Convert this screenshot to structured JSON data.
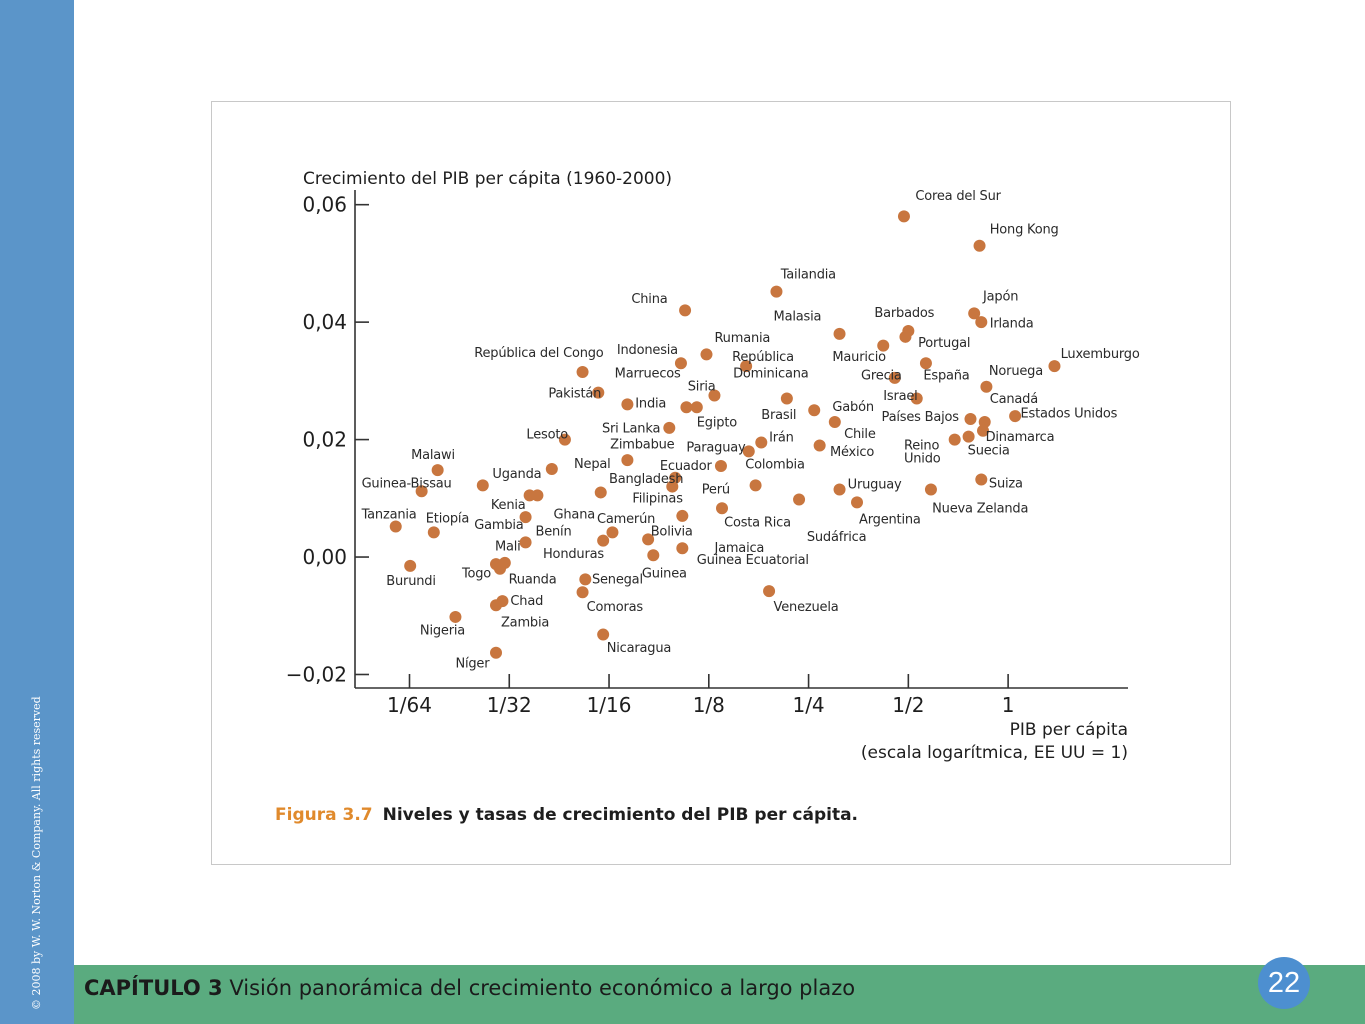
{
  "slide": {
    "copyright": "© 2008 by W. W. Norton & Company. All rights reserved",
    "chapter_label": "CAPÍTULO 3",
    "chapter_title": "Visión panorámica del crecimiento económico a largo plazo",
    "page_number": "22",
    "caption_number": "Figura 3.7",
    "caption_text": "Niveles y tasas de crecimiento del PIB per cápita."
  },
  "colors": {
    "point": "#c8763f",
    "left_bar": "#5b95c9",
    "bottom_bar": "#5aab7f",
    "badge": "#4d8fd0",
    "caption_number": "#e08a2c"
  },
  "chart_data": {
    "type": "scatter",
    "ylabel": "Crecimiento del PIB per cápita (1960-2000)",
    "xlabel": [
      "PIB per cápita",
      "(escala logarítmica, EE UU = 1)"
    ],
    "x_scale": "log2",
    "xlim": [
      0.0107,
      2.3
    ],
    "ylim": [
      -0.0223,
      0.0625
    ],
    "xticks": [
      {
        "value": 0.015625,
        "label": "1/64"
      },
      {
        "value": 0.03125,
        "label": "1/32"
      },
      {
        "value": 0.0625,
        "label": "1/16"
      },
      {
        "value": 0.125,
        "label": "1/8"
      },
      {
        "value": 0.25,
        "label": "1/4"
      },
      {
        "value": 0.5,
        "label": "1/2"
      },
      {
        "value": 1,
        "label": "1"
      }
    ],
    "yticks": [
      {
        "value": 0.06,
        "label": "0,06"
      },
      {
        "value": 0.04,
        "label": "0,04"
      },
      {
        "value": 0.02,
        "label": "0,02"
      },
      {
        "value": 0.0,
        "label": "0,00"
      },
      {
        "value": -0.02,
        "label": "−0,02"
      }
    ],
    "grid": false,
    "points": [
      {
        "name": "Corea del Sur",
        "x": 0.485,
        "y": 0.058
      },
      {
        "name": "Hong Kong",
        "x": 0.82,
        "y": 0.053
      },
      {
        "name": "Tailandia",
        "x": 0.2,
        "y": 0.0452
      },
      {
        "name": "China",
        "x": 0.106,
        "y": 0.042
      },
      {
        "name": "Japón",
        "x": 0.79,
        "y": 0.0415
      },
      {
        "name": "Irlanda",
        "x": 0.83,
        "y": 0.04
      },
      {
        "name": "Malasia",
        "x": 0.31,
        "y": 0.038
      },
      {
        "name": "Barbados",
        "x": 0.5,
        "y": 0.0385
      },
      {
        "name": "Portugal",
        "x": 0.49,
        "y": 0.0375
      },
      {
        "name": "Rumania",
        "x": 0.123,
        "y": 0.0345
      },
      {
        "name": "Mauricio",
        "x": 0.42,
        "y": 0.036
      },
      {
        "name": "Indonesia",
        "x": 0.103,
        "y": 0.033
      },
      {
        "name": "República Dominicana",
        "x": 0.162,
        "y": 0.0325
      },
      {
        "name": "España",
        "x": 0.565,
        "y": 0.033
      },
      {
        "name": "Luxemburgo",
        "x": 1.38,
        "y": 0.0325
      },
      {
        "name": "República del Congo",
        "x": 0.052,
        "y": 0.0315
      },
      {
        "name": "Grecia",
        "x": 0.455,
        "y": 0.0305
      },
      {
        "name": "Noruega",
        "x": 0.86,
        "y": 0.029
      },
      {
        "name": "Pakistán",
        "x": 0.058,
        "y": 0.028
      },
      {
        "name": "Marruecos",
        "x": 0.13,
        "y": 0.0275
      },
      {
        "name": "Israel",
        "x": 0.53,
        "y": 0.027
      },
      {
        "name": "Brasil",
        "x": 0.215,
        "y": 0.027
      },
      {
        "name": "India",
        "x": 0.071,
        "y": 0.026
      },
      {
        "name": "Siria",
        "x": 0.107,
        "y": 0.0255
      },
      {
        "name": "Egipto",
        "x": 0.115,
        "y": 0.0255
      },
      {
        "name": "Gabón",
        "x": 0.26,
        "y": 0.025
      },
      {
        "name": "Canadá",
        "x": 1.05,
        "y": 0.024
      },
      {
        "name": "Países Bajos",
        "x": 0.77,
        "y": 0.0235
      },
      {
        "name": "Estados Unidos",
        "x": 0.85,
        "y": 0.023
      },
      {
        "name": "Sri Lanka",
        "x": 0.095,
        "y": 0.022
      },
      {
        "name": "Chile",
        "x": 0.3,
        "y": 0.023
      },
      {
        "name": "Dinamarca",
        "x": 0.84,
        "y": 0.0215
      },
      {
        "name": "Lesoto",
        "x": 0.046,
        "y": 0.02
      },
      {
        "name": "Reino Unido",
        "x": 0.69,
        "y": 0.02
      },
      {
        "name": "Suecia",
        "x": 0.76,
        "y": 0.0205
      },
      {
        "name": "Irán",
        "x": 0.18,
        "y": 0.0195
      },
      {
        "name": "México",
        "x": 0.27,
        "y": 0.019
      },
      {
        "name": "Paraguay",
        "x": 0.165,
        "y": 0.018
      },
      {
        "name": "Zimbabue",
        "x": 0.071,
        "y": 0.0165
      },
      {
        "name": "Nepal",
        "x": 0.042,
        "y": 0.015
      },
      {
        "name": "Malawi",
        "x": 0.019,
        "y": 0.0148
      },
      {
        "name": "Colombia",
        "x": 0.136,
        "y": 0.0155
      },
      {
        "name": "Ecuador",
        "x": 0.099,
        "y": 0.0135
      },
      {
        "name": "Suiza",
        "x": 0.83,
        "y": 0.0132
      },
      {
        "name": "Uganda",
        "x": 0.026,
        "y": 0.0122
      },
      {
        "name": "Costa Rica",
        "x": 0.173,
        "y": 0.0122
      },
      {
        "name": "Bangladesh",
        "x": 0.097,
        "y": 0.012
      },
      {
        "name": "Uruguay",
        "x": 0.31,
        "y": 0.0115
      },
      {
        "name": "Nueva Zelanda",
        "x": 0.585,
        "y": 0.0115
      },
      {
        "name": "Guinea-Bissau",
        "x": 0.017,
        "y": 0.0112
      },
      {
        "name": "Perú",
        "x": 0.059,
        "y": 0.011
      },
      {
        "name": "Filipinas",
        "x": 0.036,
        "y": 0.0105
      },
      {
        "name": "Kenia",
        "x": 0.038,
        "y": 0.0105
      },
      {
        "name": "Sudáfrica",
        "x": 0.234,
        "y": 0.0098
      },
      {
        "name": "Argentina",
        "x": 0.35,
        "y": 0.0093
      },
      {
        "name": "Costa Rica",
        "x": 0.137,
        "y": 0.0083
      },
      {
        "name": "Filipinas",
        "x": 0.104,
        "y": 0.007
      },
      {
        "name": "Gambia",
        "x": 0.035,
        "y": 0.0068
      },
      {
        "name": "Tanzania",
        "x": 0.0142,
        "y": 0.0052
      },
      {
        "name": "Etiopía",
        "x": 0.0185,
        "y": 0.0042
      },
      {
        "name": "Camerún",
        "x": 0.064,
        "y": 0.0042
      },
      {
        "name": "Benín",
        "x": 0.035,
        "y": 0.0025
      },
      {
        "name": "Honduras",
        "x": 0.06,
        "y": 0.0028
      },
      {
        "name": "Bolivia",
        "x": 0.082,
        "y": 0.003
      },
      {
        "name": "Jamaica",
        "x": 0.104,
        "y": 0.0015
      },
      {
        "name": "Guinea",
        "x": 0.085,
        "y": 0.0003
      },
      {
        "name": "Togo",
        "x": 0.0285,
        "y": -0.0012
      },
      {
        "name": "Burundi",
        "x": 0.0157,
        "y": -0.0015
      },
      {
        "name": "Ruanda",
        "x": 0.0303,
        "y": -0.001
      },
      {
        "name": "Mali",
        "x": 0.0293,
        "y": -0.002
      },
      {
        "name": "Senegal",
        "x": 0.053,
        "y": -0.0038
      },
      {
        "name": "Comoras",
        "x": 0.052,
        "y": -0.006
      },
      {
        "name": "Venezuela",
        "x": 0.19,
        "y": -0.0058
      },
      {
        "name": "Zambia",
        "x": 0.0298,
        "y": -0.0075
      },
      {
        "name": "Chad",
        "x": 0.0285,
        "y": -0.0082
      },
      {
        "name": "Nigeria",
        "x": 0.0215,
        "y": -0.0102
      },
      {
        "name": "Nicaragua",
        "x": 0.06,
        "y": -0.0132
      },
      {
        "name": "Níger",
        "x": 0.0285,
        "y": -0.0163
      }
    ],
    "labels": [
      {
        "text": "Corea del Sur",
        "x": 0.525,
        "y": 0.0608
      },
      {
        "text": "Hong Kong",
        "x": 0.88,
        "y": 0.0551
      },
      {
        "text": "Tailandia",
        "x": 0.206,
        "y": 0.0474
      },
      {
        "text": "China",
        "x": 0.073,
        "y": 0.0433
      },
      {
        "text": "Malasia",
        "x": 0.196,
        "y": 0.0403
      },
      {
        "text": "Japón",
        "x": 0.84,
        "y": 0.0437
      },
      {
        "text": "Irlanda",
        "x": 0.88,
        "y": 0.0391
      },
      {
        "text": "Barbados",
        "x": 0.395,
        "y": 0.0409
      },
      {
        "text": "Portugal",
        "x": 0.535,
        "y": 0.0358
      },
      {
        "text": "Rumania",
        "x": 0.13,
        "y": 0.0366
      },
      {
        "text": "República",
        "x": 0.147,
        "y": 0.0334
      },
      {
        "text": "Dominicana",
        "x": 0.148,
        "y": 0.0306
      },
      {
        "text": "Mauricio",
        "x": 0.295,
        "y": 0.0334
      },
      {
        "text": "Indonesia",
        "x": 0.066,
        "y": 0.0346
      },
      {
        "text": "República del Congo",
        "x": 0.0245,
        "y": 0.0341
      },
      {
        "text": "Marruecos",
        "x": 0.065,
        "y": 0.0306
      },
      {
        "text": "Siria",
        "x": 0.108,
        "y": 0.0284
      },
      {
        "text": "Pakistán",
        "x": 0.041,
        "y": 0.0272
      },
      {
        "text": "India",
        "x": 0.075,
        "y": 0.0255
      },
      {
        "text": "Egipto",
        "x": 0.115,
        "y": 0.0222
      },
      {
        "text": "Brasil",
        "x": 0.18,
        "y": 0.0235
      },
      {
        "text": "Gabón",
        "x": 0.295,
        "y": 0.0249
      },
      {
        "text": "Grecia",
        "x": 0.36,
        "y": 0.0302
      },
      {
        "text": "Israel",
        "x": 0.42,
        "y": 0.0267
      },
      {
        "text": "España",
        "x": 0.555,
        "y": 0.0302
      },
      {
        "text": "Noruega",
        "x": 0.875,
        "y": 0.031
      },
      {
        "text": "Luxemburgo",
        "x": 1.44,
        "y": 0.0339
      },
      {
        "text": "Canadá",
        "x": 0.88,
        "y": 0.0262
      },
      {
        "text": "Estados Unidos",
        "x": 1.09,
        "y": 0.0238
      },
      {
        "text": "Países Bajos",
        "x": 0.415,
        "y": 0.0232
      },
      {
        "text": "Chile",
        "x": 0.32,
        "y": 0.0203
      },
      {
        "text": "Dinamarca",
        "x": 0.855,
        "y": 0.0198
      },
      {
        "text": "Irán",
        "x": 0.19,
        "y": 0.0197
      },
      {
        "text": "Reino",
        "x": 0.485,
        "y": 0.0183
      },
      {
        "text": "Unido",
        "x": 0.485,
        "y": 0.0161
      },
      {
        "text": "Suecia",
        "x": 0.755,
        "y": 0.0175
      },
      {
        "text": "México",
        "x": 0.29,
        "y": 0.0172
      },
      {
        "text": "Sri Lanka",
        "x": 0.0595,
        "y": 0.0212
      },
      {
        "text": "Lesoto",
        "x": 0.0352,
        "y": 0.0202
      },
      {
        "text": "Zimbabue",
        "x": 0.063,
        "y": 0.0185
      },
      {
        "text": "Paraguay",
        "x": 0.107,
        "y": 0.018
      },
      {
        "text": "Nepal",
        "x": 0.049,
        "y": 0.0152
      },
      {
        "text": "Malawi",
        "x": 0.0158,
        "y": 0.0167
      },
      {
        "text": "Colombia",
        "x": 0.161,
        "y": 0.0151
      },
      {
        "text": "Ecuador",
        "x": 0.089,
        "y": 0.0148
      },
      {
        "text": "Uganda",
        "x": 0.0278,
        "y": 0.0135
      },
      {
        "text": "Bangladesh",
        "x": 0.0625,
        "y": 0.0126
      },
      {
        "text": "Guinea-Bissau",
        "x": 0.0112,
        "y": 0.0118
      },
      {
        "text": "Uruguay",
        "x": 0.328,
        "y": 0.0117
      },
      {
        "text": "Suiza",
        "x": 0.875,
        "y": 0.0118
      },
      {
        "text": "Perú",
        "x": 0.119,
        "y": 0.0108
      },
      {
        "text": "Filipinas",
        "x": 0.0735,
        "y": 0.0093
      },
      {
        "text": "Kenia",
        "x": 0.0275,
        "y": 0.0082
      },
      {
        "text": "Ghana",
        "x": 0.0425,
        "y": 0.0066
      },
      {
        "text": "Nueva Zelanda",
        "x": 0.59,
        "y": 0.0076
      },
      {
        "text": "Argentina",
        "x": 0.355,
        "y": 0.0057
      },
      {
        "text": "Costa Rica",
        "x": 0.139,
        "y": 0.0052
      },
      {
        "text": "Sudáfrica",
        "x": 0.247,
        "y": 0.0027
      },
      {
        "text": "Gambia",
        "x": 0.0245,
        "y": 0.0048
      },
      {
        "text": "Tanzania",
        "x": 0.0112,
        "y": 0.0066
      },
      {
        "text": "Etiopía",
        "x": 0.0175,
        "y": 0.0059
      },
      {
        "text": "Camerún",
        "x": 0.0575,
        "y": 0.0058
      },
      {
        "text": "Benín",
        "x": 0.0375,
        "y": 0.0037
      },
      {
        "text": "Bolivia",
        "x": 0.0835,
        "y": 0.0037
      },
      {
        "text": "Jamaica",
        "x": 0.13,
        "y": 0.0009
      },
      {
        "text": "Mali",
        "x": 0.0283,
        "y": 0.0011
      },
      {
        "text": "Honduras",
        "x": 0.0395,
        "y": -0.0002
      },
      {
        "text": "Guinea Ecuatorial",
        "x": 0.115,
        "y": -0.0012
      },
      {
        "text": "Guinea",
        "x": 0.0785,
        "y": -0.0035
      },
      {
        "text": "Togo",
        "x": 0.0225,
        "y": -0.0035
      },
      {
        "text": "Burundi",
        "x": 0.0133,
        "y": -0.0048
      },
      {
        "text": "Ruanda",
        "x": 0.0311,
        "y": -0.0045
      },
      {
        "text": "Senegal",
        "x": 0.0555,
        "y": -0.0045
      },
      {
        "text": "Chad",
        "x": 0.0315,
        "y": -0.0082
      },
      {
        "text": "Comoras",
        "x": 0.0535,
        "y": -0.0092
      },
      {
        "text": "Venezuela",
        "x": 0.196,
        "y": -0.0092
      },
      {
        "text": "Zambia",
        "x": 0.0295,
        "y": -0.0118
      },
      {
        "text": "Nigeria",
        "x": 0.0168,
        "y": -0.0132
      },
      {
        "text": "Nicaragua",
        "x": 0.0615,
        "y": -0.0162
      },
      {
        "text": "Níger",
        "x": 0.0215,
        "y": -0.0188
      }
    ]
  }
}
